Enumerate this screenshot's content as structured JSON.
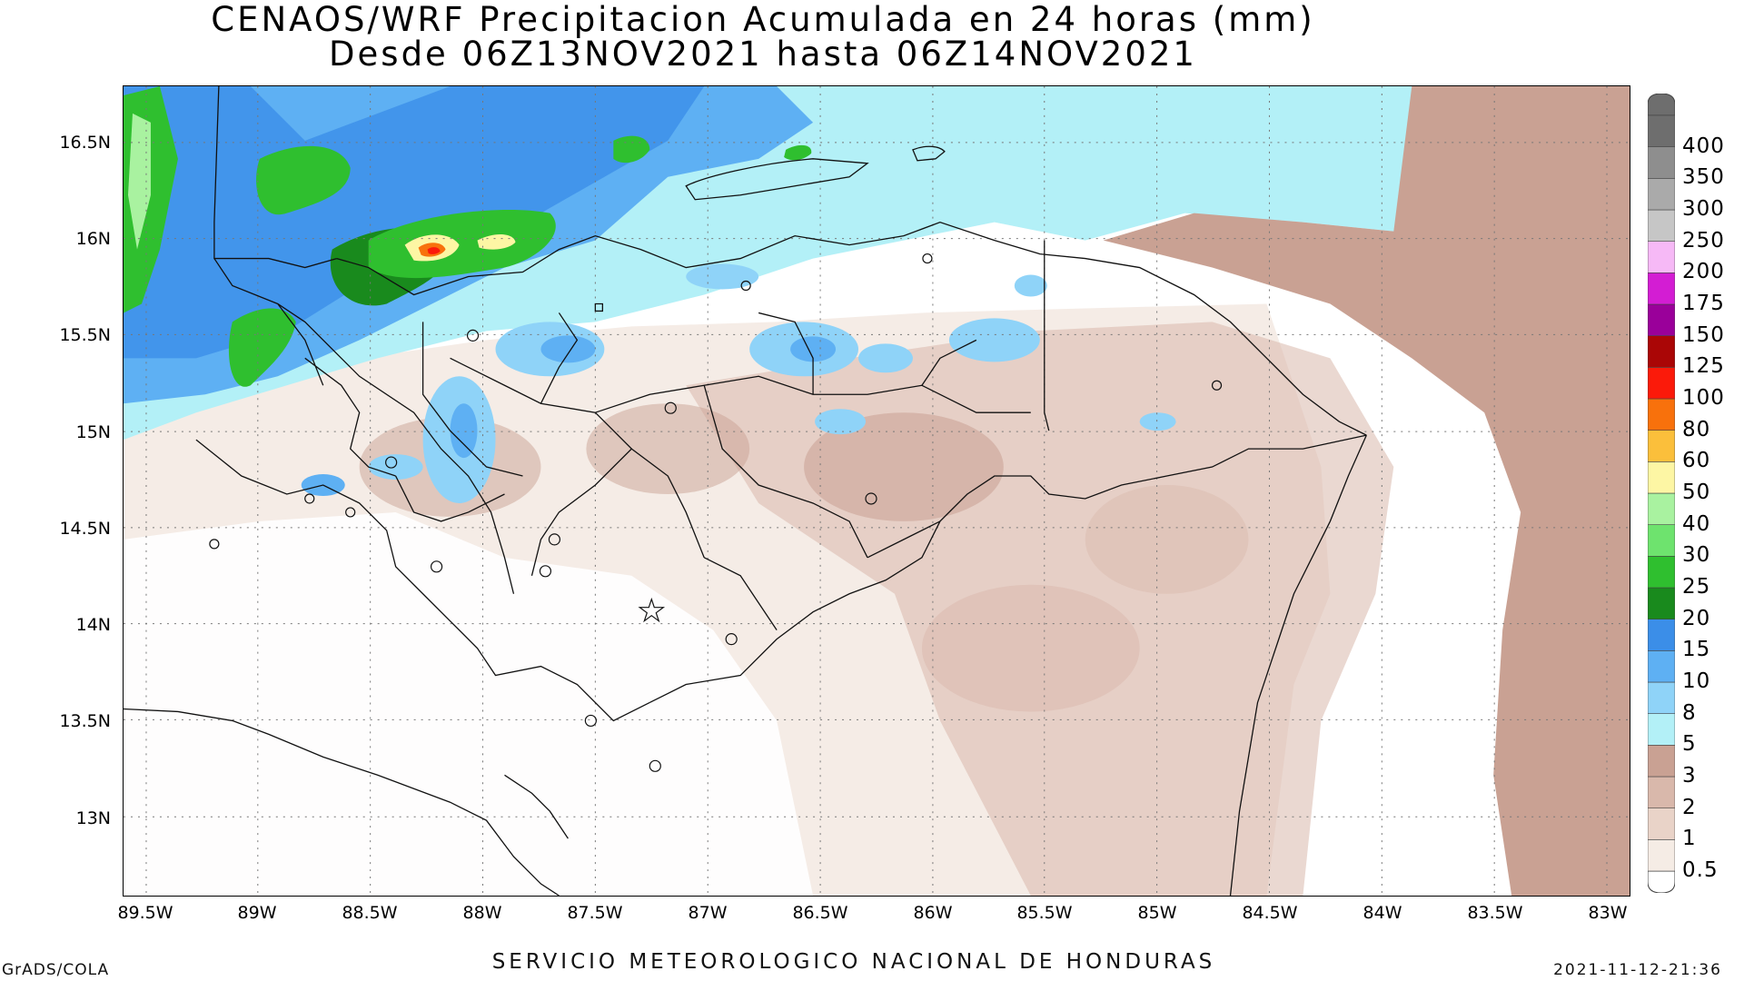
{
  "title": {
    "line1": "CENAOS/WRF Precipitacion Acumulada en 24 horas (mm)",
    "line2": "Desde 06Z13NOV2021 hasta 06Z14NOV2021"
  },
  "map": {
    "lon_range": [
      -89.6,
      -82.9
    ],
    "lat_range": [
      12.6,
      16.8
    ],
    "lat_ticks": [
      {
        "value": 16.5,
        "label": "16.5N"
      },
      {
        "value": 16.0,
        "label": "16N"
      },
      {
        "value": 15.5,
        "label": "15.5N"
      },
      {
        "value": 15.0,
        "label": "15N"
      },
      {
        "value": 14.5,
        "label": "14.5N"
      },
      {
        "value": 14.0,
        "label": "14N"
      },
      {
        "value": 13.5,
        "label": "13.5N"
      },
      {
        "value": 13.0,
        "label": "13N"
      }
    ],
    "lon_ticks": [
      {
        "value": -89.5,
        "label": "89.5W"
      },
      {
        "value": -89.0,
        "label": "89W"
      },
      {
        "value": -88.5,
        "label": "88.5W"
      },
      {
        "value": -88.0,
        "label": "88W"
      },
      {
        "value": -87.5,
        "label": "87.5W"
      },
      {
        "value": -87.0,
        "label": "87W"
      },
      {
        "value": -86.5,
        "label": "86.5W"
      },
      {
        "value": -86.0,
        "label": "86W"
      },
      {
        "value": -85.5,
        "label": "85.5W"
      },
      {
        "value": -85.0,
        "label": "85W"
      },
      {
        "value": -84.5,
        "label": "84.5W"
      },
      {
        "value": -84.0,
        "label": "84W"
      },
      {
        "value": -83.5,
        "label": "83.5W"
      },
      {
        "value": -83.0,
        "label": "83W"
      }
    ],
    "grid": true
  },
  "colorbar": {
    "levels": [
      {
        "label": "0.5",
        "color": "#f5ece5"
      },
      {
        "label": "1",
        "color": "#e9d3c8"
      },
      {
        "label": "2",
        "color": "#d9b8ab"
      },
      {
        "label": "3",
        "color": "#c9a193"
      },
      {
        "label": "5",
        "color": "#b3f0f7"
      },
      {
        "label": "8",
        "color": "#8fd3f8"
      },
      {
        "label": "10",
        "color": "#5eb0f3"
      },
      {
        "label": "15",
        "color": "#3b8ee8"
      },
      {
        "label": "20",
        "color": "#198a1d"
      },
      {
        "label": "25",
        "color": "#2fbf2f"
      },
      {
        "label": "30",
        "color": "#6ee36e"
      },
      {
        "label": "40",
        "color": "#a9f2a0"
      },
      {
        "label": "50",
        "color": "#fdf6a4"
      },
      {
        "label": "60",
        "color": "#fbbf3b"
      },
      {
        "label": "80",
        "color": "#f8710c"
      },
      {
        "label": "100",
        "color": "#fb1a0a"
      },
      {
        "label": "125",
        "color": "#aa0606"
      },
      {
        "label": "150",
        "color": "#9a009a"
      },
      {
        "label": "175",
        "color": "#d31dd3"
      },
      {
        "label": "200",
        "color": "#f6b9f6"
      },
      {
        "label": "250",
        "color": "#c6c6c6"
      },
      {
        "label": "300",
        "color": "#aaaaaa"
      },
      {
        "label": "350",
        "color": "#8e8e8e"
      },
      {
        "label": "400",
        "color": "#6e6e6e"
      }
    ],
    "bottom_color": "#ffffff"
  },
  "colors": {
    "land_dry": "#ffffff",
    "light_rain": "#f2e6de",
    "ocean_light": "#b3f0f7",
    "ocean_brown": "#c9a193"
  },
  "footer": {
    "left": "GrADS/COLA",
    "center": "SERVICIO METEOROLOGICO NACIONAL DE HONDURAS",
    "right": "2021-11-12-21:36"
  }
}
